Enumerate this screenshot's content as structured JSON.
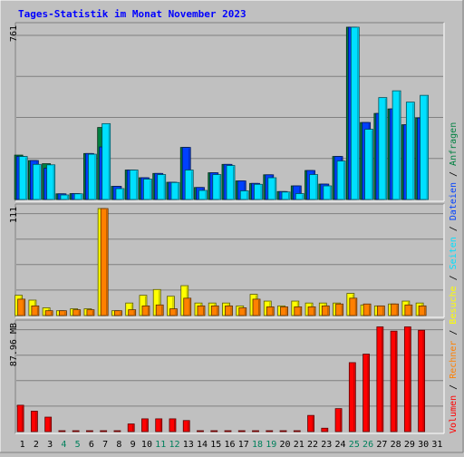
{
  "colors": {
    "hits": "#008040",
    "files": "#0040ff",
    "pages": "#00e0ff",
    "visits": "#ffff00",
    "sites": "#ff8000",
    "kbytes": "#ff0000",
    "weekend_label": "#00805c",
    "title": "#0000ff"
  },
  "chart_data": {
    "type": "bar",
    "title": "Tages-Statistik im Monat November 2023",
    "categories": [
      "1",
      "2",
      "3",
      "4",
      "5",
      "6",
      "7",
      "8",
      "9",
      "10",
      "11",
      "12",
      "13",
      "14",
      "15",
      "16",
      "17",
      "18",
      "19",
      "20",
      "21",
      "22",
      "23",
      "24",
      "25",
      "26",
      "27",
      "28",
      "29",
      "30",
      "31"
    ],
    "weekend_days": [
      "4",
      "5",
      "11",
      "12",
      "18",
      "19",
      "25",
      "26"
    ],
    "grid": true,
    "legend": {
      "placement": "right-vertical",
      "lower": {
        "text": "Volumen",
        "color": "#ff0000"
      },
      "middle": [
        {
          "text": "Rechner",
          "color": "#ff8000"
        },
        {
          "text": "Besuche",
          "color": "#ffff00"
        }
      ],
      "upper": [
        {
          "text": "Seiten",
          "color": "#00e0ff"
        },
        {
          "text": "Dateien",
          "color": "#0040ff"
        },
        {
          "text": "Anfragen",
          "color": "#008040"
        }
      ],
      "separator": "/"
    },
    "panels": [
      {
        "name": "upper",
        "max_label": "761",
        "ylim": [
          0,
          761
        ],
        "series": [
          {
            "name": "Anfragen",
            "color": "#008040",
            "values": [
              196,
              172,
              158,
              25,
              26,
              203,
              318,
              58,
              130,
              96,
              115,
              76,
              230,
              53,
              118,
              155,
              82,
              71,
              109,
              35,
              60,
              128,
              68,
              190,
              761,
              340,
              380,
              400,
              330,
              360,
              null
            ]
          },
          {
            "name": "Dateien",
            "color": "#0040ff",
            "values": [
              190,
              172,
              138,
              25,
              26,
              203,
              232,
              58,
              130,
              96,
              115,
              76,
              230,
              53,
              118,
              155,
              82,
              71,
              109,
              35,
              60,
              128,
              68,
              190,
              761,
              340,
              380,
              400,
              330,
              360,
              null
            ]
          },
          {
            "name": "Seiten",
            "color": "#00e0ff",
            "values": [
              190,
              155,
              153,
              20,
              25,
              200,
              335,
              48,
              130,
              90,
              110,
              75,
              130,
              40,
              110,
              150,
              38,
              67,
              96,
              33,
              26,
              110,
              60,
              170,
              761,
              310,
              450,
              480,
              430,
              460,
              null
            ]
          }
        ]
      },
      {
        "name": "middle",
        "max_label": "111",
        "ylim": [
          0,
          111
        ],
        "series": [
          {
            "name": "Besuche",
            "color": "#ffff00",
            "values": [
              21,
              16,
              8,
              5,
              7,
              7,
              111,
              5,
              13,
              21,
              27,
              20,
              31,
              13,
              13,
              13,
              10,
              22,
              15,
              10,
              15,
              13,
              13,
              13,
              23,
              11,
              10,
              12,
              15,
              13,
              null
            ]
          },
          {
            "name": "Rechner",
            "color": "#ff8000",
            "values": [
              17,
              10,
              5,
              5,
              6,
              6,
              111,
              5,
              6,
              10,
              11,
              7,
              18,
              10,
              10,
              10,
              8,
              17,
              9,
              9,
              9,
              9,
              10,
              12,
              18,
              12,
              10,
              12,
              11,
              10,
              null
            ]
          }
        ]
      },
      {
        "name": "lower",
        "max_label": "87.96 MB",
        "ylim": [
          0,
          87.96
        ],
        "series": [
          {
            "name": "Volumen",
            "color": "#ff0000",
            "values": [
              21.7,
              16.8,
              11.9,
              0.7,
              0.7,
              0.7,
              0.7,
              0.7,
              6.3,
              10.5,
              10.5,
              10.5,
              9.1,
              0.7,
              0.7,
              0.7,
              0.7,
              0.7,
              0.7,
              0.7,
              0.7,
              13.3,
              2.8,
              18.9,
              56.7,
              63.7,
              86.1,
              82.6,
              86.1,
              83.3,
              null
            ]
          }
        ]
      }
    ]
  }
}
